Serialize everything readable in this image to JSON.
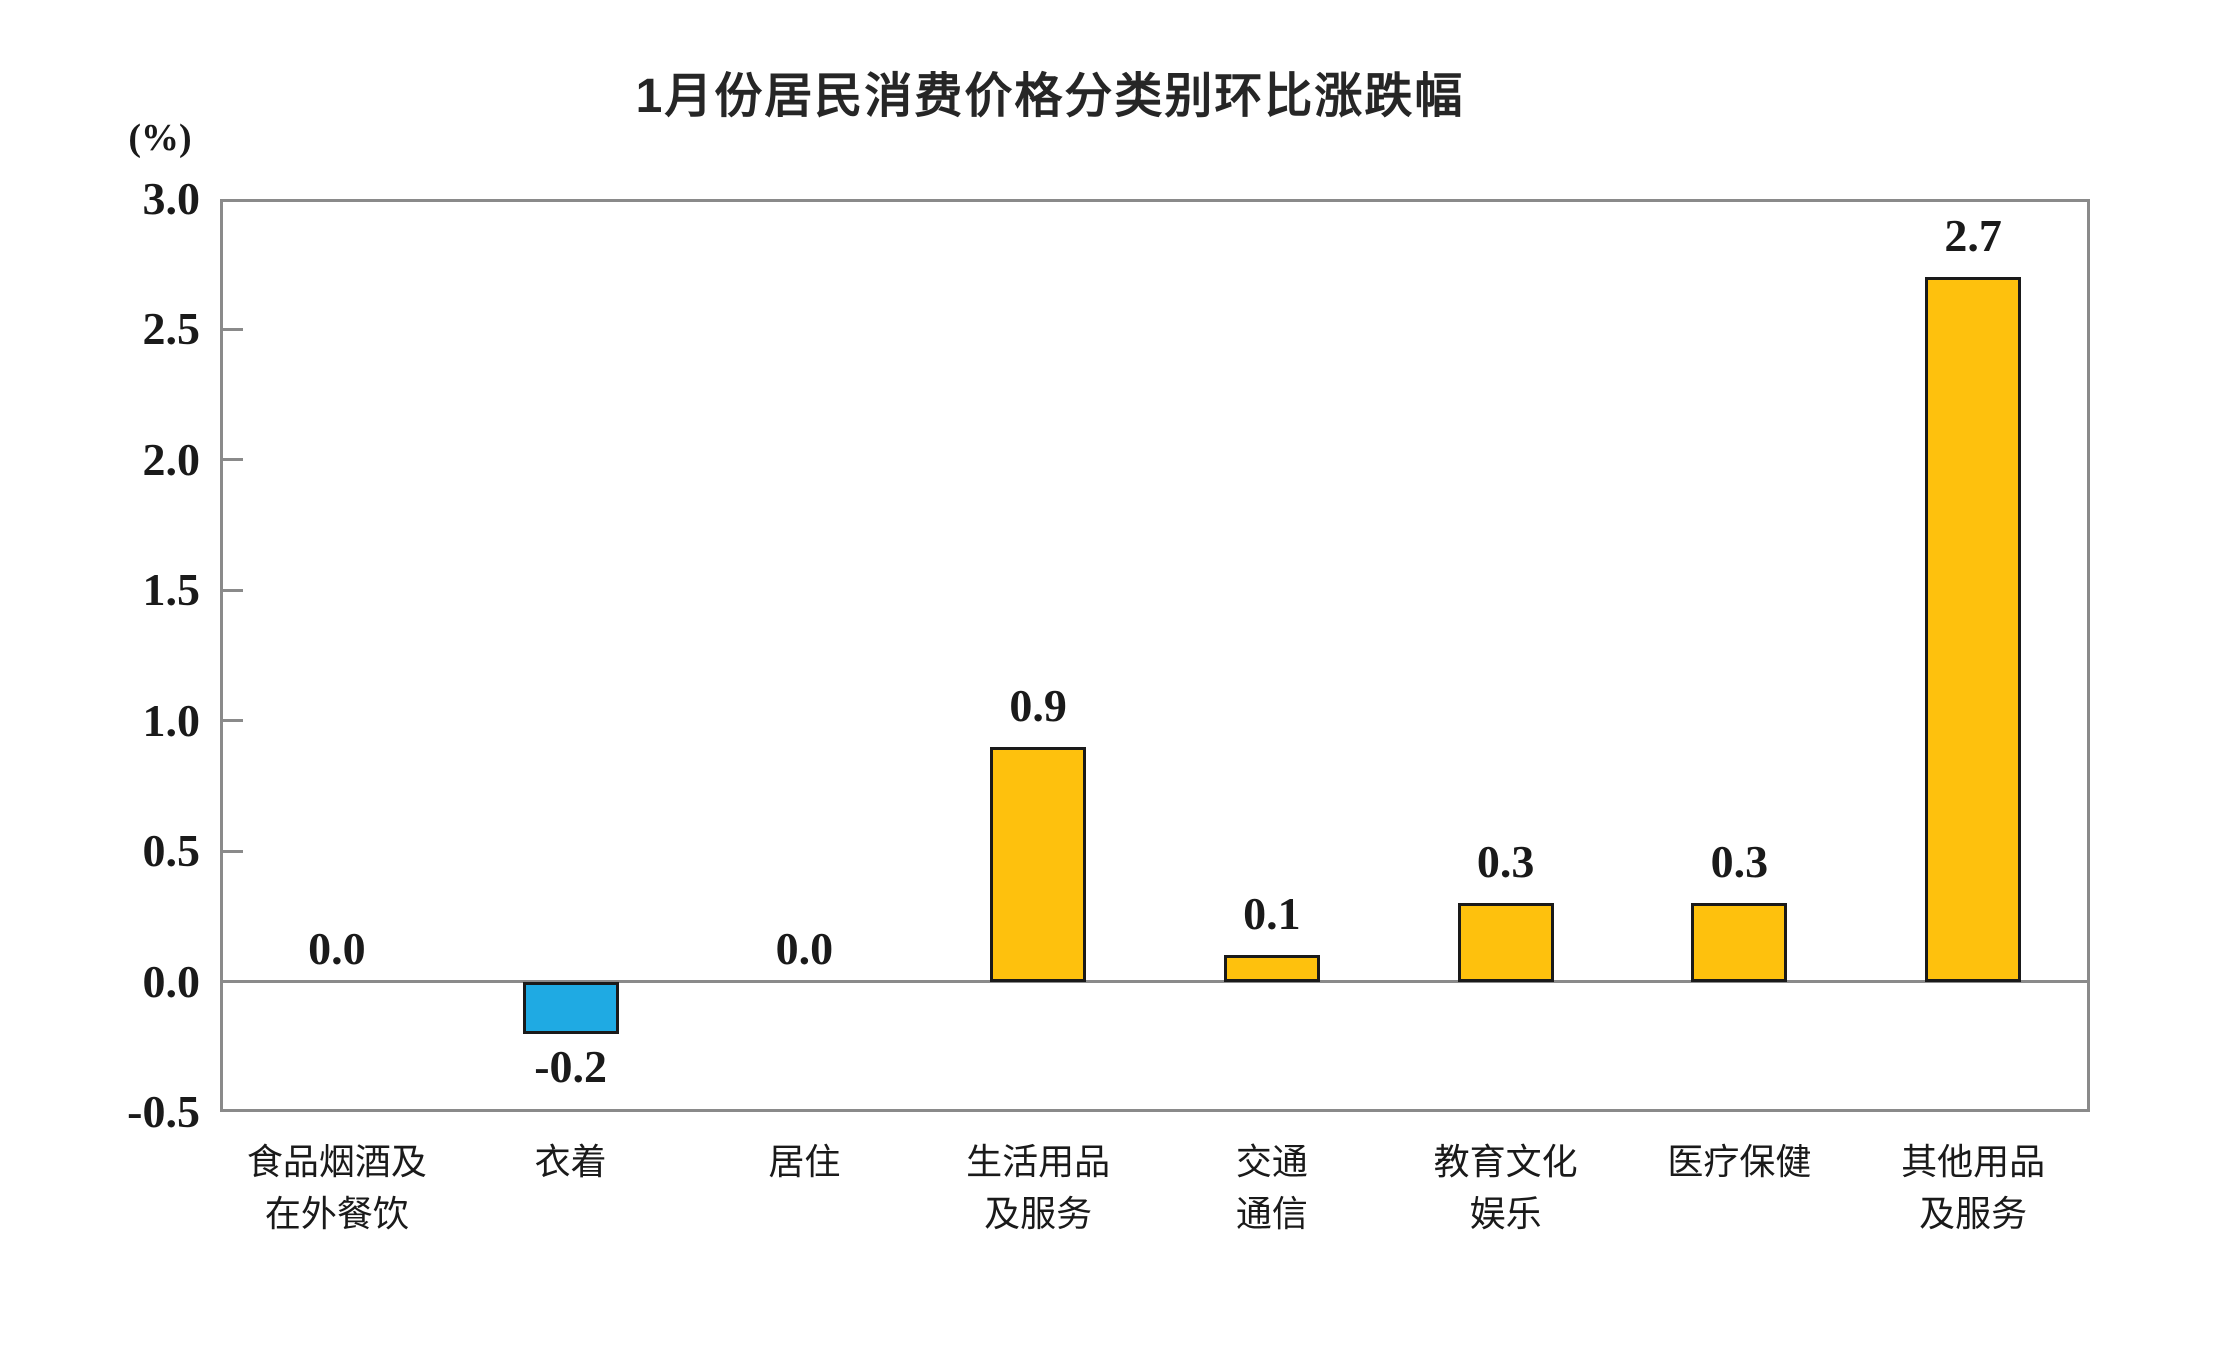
{
  "title": "1月份居民消费价格分类别环比涨跌幅",
  "chart_data": {
    "type": "bar",
    "title": "1月份居民消费价格分类别环比涨跌幅",
    "unit_label": "(%)",
    "xlabel": "",
    "ylabel": "(%)",
    "categories": [
      "食品烟酒及\n在外餐饮",
      "衣着",
      "居住",
      "生活用品\n及服务",
      "交通\n通信",
      "教育文化\n娱乐",
      "医疗保健",
      "其他用品\n及服务"
    ],
    "values": [
      0.0,
      -0.2,
      0.0,
      0.9,
      0.1,
      0.3,
      0.3,
      2.7
    ],
    "value_labels": [
      "0.0",
      "-0.2",
      "0.0",
      "0.9",
      "0.1",
      "0.3",
      "0.3",
      "2.7"
    ],
    "ylim": [
      -0.5,
      3.0
    ],
    "ytick_labels": [
      "3.0",
      "2.5",
      "2.0",
      "1.5",
      "1.0",
      "0.5",
      "0.0",
      "-0.5"
    ],
    "grid": false,
    "legend_position": "none",
    "colors": {
      "positive_bar": "#FEC10D",
      "negative_bar": "#1FAAE3",
      "bar_border": "#1A1A1A",
      "axis": "#8A8A8A",
      "text": "#1A1A1A"
    }
  }
}
